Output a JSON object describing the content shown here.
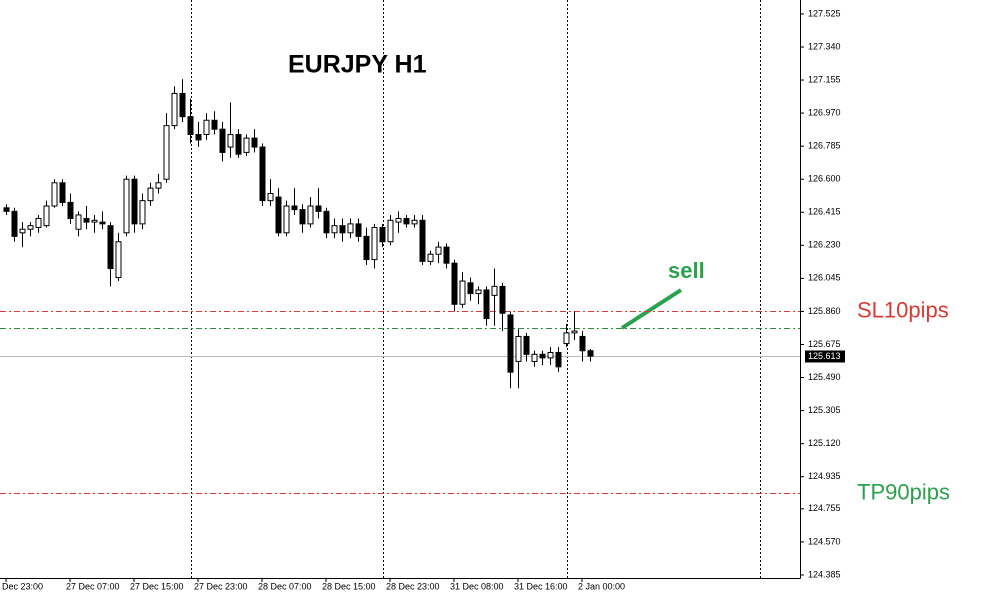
{
  "chart_data": {
    "type": "candlestick",
    "title": "EURJPY H1",
    "categories": [
      "Dec 23:00",
      null,
      null,
      null,
      null,
      null,
      null,
      null,
      "27 Dec 07:00",
      null,
      null,
      null,
      null,
      null,
      null,
      null,
      "27 Dec 15:00",
      null,
      null,
      null,
      null,
      null,
      null,
      null,
      "27 Dec 23:00",
      null,
      null,
      null,
      null,
      null,
      null,
      null,
      "28 Dec 07:00",
      null,
      null,
      null,
      null,
      null,
      null,
      null,
      "28 Dec 15:00",
      null,
      null,
      null,
      null,
      null,
      null,
      null,
      "28 Dec 23:00",
      null,
      null,
      null,
      null,
      null,
      null,
      null,
      "31 Dec 08:00",
      null,
      null,
      null,
      null,
      null,
      null,
      null,
      "31 Dec 16:00",
      null,
      null,
      null,
      null,
      null,
      null,
      null,
      "2 Jan 00:00",
      null
    ],
    "open": [
      126.44,
      126.42,
      126.3,
      126.32,
      126.33,
      126.34,
      126.45,
      126.58,
      126.47,
      126.32,
      126.38,
      126.36,
      126.36,
      126.34,
      126.05,
      126.3,
      126.6,
      126.35,
      126.48,
      126.55,
      126.6,
      126.9,
      127.08,
      126.95,
      126.85,
      126.85,
      126.93,
      126.88,
      126.78,
      126.85,
      126.75,
      126.83,
      126.78,
      126.48,
      126.5,
      126.3,
      126.45,
      126.43,
      126.35,
      126.45,
      126.42,
      126.3,
      126.34,
      126.3,
      126.35,
      126.28,
      126.15,
      126.33,
      126.25,
      126.36,
      126.38,
      126.35,
      126.37,
      126.14,
      126.18,
      126.22,
      126.13,
      125.9,
      126.02,
      125.96,
      125.98,
      125.95,
      126.0,
      125.84,
      125.58,
      125.72,
      125.58,
      125.62,
      125.6,
      125.63,
      125.68,
      125.74,
      125.72,
      125.64
    ],
    "high": [
      126.46,
      126.44,
      126.36,
      126.36,
      126.4,
      126.48,
      126.6,
      126.6,
      126.52,
      126.42,
      126.45,
      126.4,
      126.42,
      126.36,
      126.3,
      126.62,
      126.62,
      126.52,
      126.58,
      126.63,
      126.97,
      127.12,
      127.16,
      127.05,
      126.92,
      126.97,
      126.98,
      126.92,
      127.03,
      126.88,
      126.85,
      126.88,
      126.8,
      126.6,
      126.55,
      126.48,
      126.55,
      126.46,
      126.5,
      126.55,
      126.44,
      126.38,
      126.38,
      126.38,
      126.38,
      126.33,
      126.35,
      126.35,
      126.4,
      126.42,
      126.4,
      126.4,
      126.4,
      126.2,
      126.25,
      126.24,
      126.15,
      126.08,
      126.05,
      126.0,
      126.0,
      126.1,
      126.02,
      125.86,
      125.76,
      125.74,
      125.64,
      125.64,
      125.66,
      125.66,
      125.79,
      125.86,
      125.75,
      125.65
    ],
    "low": [
      126.4,
      126.25,
      126.22,
      126.28,
      126.3,
      126.33,
      126.44,
      126.45,
      126.35,
      126.28,
      126.32,
      126.3,
      126.32,
      126.0,
      126.03,
      126.28,
      126.3,
      126.32,
      126.45,
      126.52,
      126.58,
      126.88,
      126.92,
      126.8,
      126.78,
      126.82,
      126.85,
      126.7,
      126.72,
      126.72,
      126.73,
      126.75,
      126.45,
      126.45,
      126.28,
      126.28,
      126.4,
      126.3,
      126.33,
      126.38,
      126.27,
      126.27,
      126.25,
      126.27,
      126.25,
      126.12,
      126.1,
      126.22,
      126.23,
      126.3,
      126.33,
      126.33,
      126.12,
      126.12,
      126.13,
      126.1,
      125.86,
      125.88,
      125.92,
      125.9,
      125.78,
      125.78,
      125.75,
      125.43,
      125.43,
      125.58,
      125.55,
      125.56,
      125.56,
      125.52,
      125.66,
      125.7,
      125.58,
      125.58
    ],
    "close": [
      126.42,
      126.28,
      126.32,
      126.34,
      126.38,
      126.45,
      126.58,
      126.47,
      126.38,
      126.4,
      126.36,
      126.37,
      126.35,
      126.1,
      126.25,
      126.6,
      126.35,
      126.48,
      126.55,
      126.58,
      126.9,
      127.08,
      126.95,
      126.85,
      126.82,
      126.93,
      126.88,
      126.75,
      126.85,
      126.74,
      126.83,
      126.78,
      126.48,
      126.52,
      126.3,
      126.45,
      126.43,
      126.35,
      126.45,
      126.42,
      126.3,
      126.34,
      126.3,
      126.35,
      126.28,
      126.15,
      126.33,
      126.25,
      126.37,
      126.38,
      126.35,
      126.37,
      126.14,
      126.18,
      126.22,
      126.13,
      125.9,
      126.03,
      125.96,
      125.98,
      125.82,
      126.0,
      125.85,
      125.52,
      125.72,
      125.62,
      125.62,
      125.6,
      125.63,
      125.55,
      125.74,
      125.75,
      125.64,
      125.61
    ],
    "ylim": [
      124.368,
      127.603
    ],
    "yticks": [
      127.525,
      {
        "value": 127.34,
        "label": "127.340"
      },
      127.155,
      {
        "value": 126.97,
        "label": "126.970"
      },
      126.785,
      {
        "value": 126.6,
        "label": "126.600"
      },
      126.415,
      {
        "value": 126.23,
        "label": "126.230"
      },
      126.045,
      {
        "value": 125.86,
        "label": "125.860"
      },
      125.675,
      {
        "value": 125.49,
        "label": "125.490"
      },
      125.305,
      {
        "value": 125.12,
        "label": "125.120"
      },
      124.935,
      124.755,
      {
        "value": 124.57,
        "label": "124.570"
      },
      124.385
    ],
    "current_price": 125.613,
    "levels": [
      {
        "name": "SL10pips",
        "value": 125.863,
        "color": "#d93a32",
        "label_color": "#d93a32"
      },
      {
        "value": 125.768,
        "color": "#2e8b3a"
      },
      {
        "name": "TP90pips",
        "value": 124.844,
        "color": "#d93a32",
        "label_color": "#2aa14c"
      }
    ],
    "annotation": {
      "text": "sell",
      "color": "#2aa14c"
    }
  }
}
